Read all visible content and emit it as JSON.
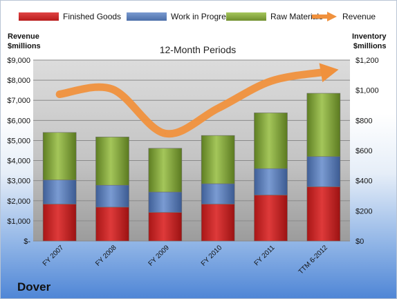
{
  "legend": {
    "finished": "Finished Goods",
    "wip": "Work in Progress",
    "raw": "Raw Materials",
    "revenue": "Revenue"
  },
  "left_axis_title": [
    "Revenue",
    "$millions"
  ],
  "right_axis_title": [
    "Inventory",
    "$millions"
  ],
  "company": "Dover",
  "chart_data": {
    "type": "bar",
    "title": "12-Month Periods",
    "categories": [
      "FY 2007",
      "FY 2008",
      "FY 2009",
      "FY 2010",
      "FY 2011",
      "TTM 6-2012"
    ],
    "stacked": true,
    "series": [
      {
        "name": "Finished Goods",
        "axis": "right",
        "color": "#c62a2a",
        "values": [
          245,
          225,
          190,
          245,
          305,
          360
        ]
      },
      {
        "name": "Work in Progress",
        "axis": "right",
        "color": "#5677b4",
        "values": [
          160,
          145,
          135,
          135,
          175,
          200
        ]
      },
      {
        "name": "Raw Materials",
        "axis": "right",
        "color": "#8fb043",
        "values": [
          315,
          320,
          290,
          320,
          370,
          420
        ]
      },
      {
        "name": "Revenue",
        "axis": "left",
        "type": "line",
        "color": "#f0913d",
        "values": [
          7300,
          7550,
          5350,
          6600,
          7950,
          8400
        ]
      }
    ],
    "left_ylim": [
      0,
      9000
    ],
    "left_ticks": [
      "$-",
      "$1,000",
      "$2,000",
      "$3,000",
      "$4,000",
      "$5,000",
      "$6,000",
      "$7,000",
      "$8,000",
      "$9,000"
    ],
    "right_ylim": [
      0,
      1200
    ],
    "right_ticks": [
      "$0",
      "$200",
      "$400",
      "$600",
      "$800",
      "$1,000",
      "$1,200"
    ],
    "grid": true,
    "legend_position": "top"
  }
}
